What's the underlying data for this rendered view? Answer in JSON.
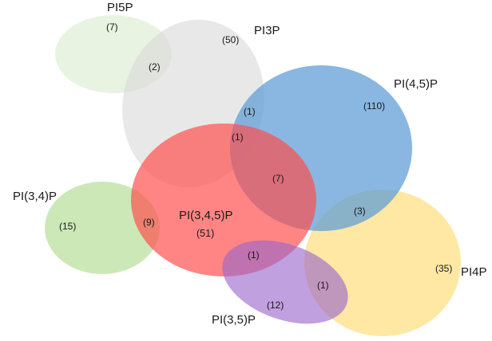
{
  "sets": {
    "pi5p": {
      "label": "PI5P",
      "count": "(7)",
      "color": "#d8ebcf"
    },
    "pi3p": {
      "label": "PI3P",
      "count": "(50)",
      "color": "#d9d9d9"
    },
    "pi45p": {
      "label": "PI(4,5)P",
      "count": "(110)",
      "color": "#5b9bd5"
    },
    "pi34p": {
      "label": "PI(3,4)P",
      "count": "(15)",
      "color": "#b5dd95"
    },
    "pi345p": {
      "label": "PI(3,4,5)P",
      "count": "(51)",
      "color": "#ff4b4b"
    },
    "pi4p": {
      "label": "PI4P",
      "count": "(35)",
      "color": "#ffd966"
    },
    "pi35p": {
      "label": "PI(3,5)P",
      "count": "(12)",
      "color": "#9966cc"
    }
  },
  "intersections": {
    "pi5p_pi3p": "(2)",
    "pi3p_pi45p": "(1)",
    "pi3p_pi45p_pi345p": "(1)",
    "pi45p_pi345p": "(7)",
    "pi34p_pi345p": "(9)",
    "pi45p_pi4p": "(3)",
    "pi345p_pi35p": "(1)",
    "pi35p_pi4p": "(1)"
  }
}
